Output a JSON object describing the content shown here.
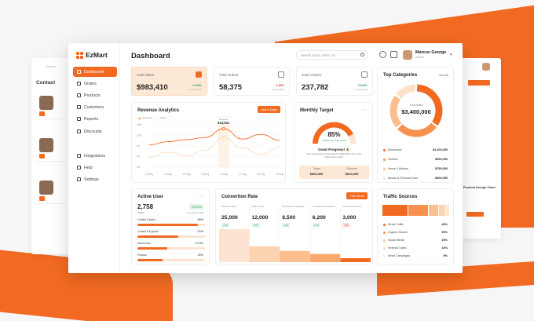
{
  "brand": {
    "name": "EzMart",
    "color": "#f26a21"
  },
  "header": {
    "title": "Dashboard",
    "search_placeholder": "Search stock, order, etc"
  },
  "user": {
    "name": "Marcus George",
    "role": "Admin"
  },
  "sidebar": {
    "items": [
      {
        "label": "Dashboard",
        "icon": "grid-icon",
        "active": true
      },
      {
        "label": "Orders",
        "icon": "cart-icon"
      },
      {
        "label": "Products",
        "icon": "box-icon"
      },
      {
        "label": "Customers",
        "icon": "users-icon"
      },
      {
        "label": "Reports",
        "icon": "chart-icon"
      },
      {
        "label": "Discounts",
        "icon": "percent-icon"
      },
      {
        "label": "Integrations",
        "icon": "plug-icon"
      },
      {
        "label": "Help",
        "icon": "help-icon"
      },
      {
        "label": "Settings",
        "icon": "gear-icon"
      }
    ]
  },
  "stats": [
    {
      "label": "Total Sales",
      "value": "$983,410",
      "change": "+3.34%",
      "sub": "vs last week",
      "trend": "up"
    },
    {
      "label": "Total Orders",
      "value": "58,375",
      "change": "-2.89%",
      "sub": "vs last week",
      "trend": "down"
    },
    {
      "label": "Total Visitors",
      "value": "237,782",
      "change": "+8.02%",
      "sub": "vs last week",
      "trend": "up"
    }
  ],
  "revenue": {
    "title": "Revenue Analytics",
    "button": "Last 8 Days",
    "legend": [
      "Revenue",
      "Order"
    ],
    "tooltip": {
      "label": "Revenue",
      "value": "$14,521"
    },
    "chart_data": {
      "type": "line",
      "x": [
        "12 Aug",
        "13 Aug",
        "14 Aug",
        "15 Aug",
        "16 Aug",
        "17 Aug",
        "18 Aug",
        "19 Aug"
      ],
      "yticks": [
        "16K",
        "12K",
        "8K",
        "4K",
        "0K"
      ],
      "ylim": [
        0,
        16000
      ],
      "series": [
        {
          "name": "Revenue",
          "values": [
            8400,
            9600,
            10400,
            11200,
            14521,
            10600,
            12400,
            10200
          ]
        },
        {
          "name": "Order",
          "values": [
            3800,
            5600,
            4400,
            6400,
            11200,
            7200,
            4800,
            7600
          ]
        }
      ]
    }
  },
  "monthly_target": {
    "title": "Monthly Target",
    "percent": 85,
    "percent_label": "85%",
    "change": "+8.02% from last month",
    "headline": "Great Progress! 🎉",
    "message": "Our achievement increased by $200,000, let's reach 100% next month.",
    "target_label": "Target",
    "target_value": "$600,000",
    "revenue_label": "Revenue",
    "revenue_value": "$510,000"
  },
  "top_categories": {
    "title": "Top Categories",
    "link": "See All",
    "total_label": "Total Sales",
    "total_value": "$3,400,000",
    "chart_data": {
      "type": "pie",
      "categories": [
        "Electronics",
        "Fashion",
        "Home & Kitchen",
        "Beauty & Personal Care"
      ],
      "values": [
        1200000,
        950000,
        750000,
        500000
      ]
    },
    "items": [
      {
        "name": "Electronics",
        "value": "$1,200,000",
        "color": "#f26a21"
      },
      {
        "name": "Fashion",
        "value": "$950,000",
        "color": "#f7924e"
      },
      {
        "name": "Home & Kitchen",
        "value": "$750,000",
        "color": "#fbbf8f"
      },
      {
        "name": "Beauty & Personal Care",
        "value": "$500,000",
        "color": "#fde0c8"
      }
    ]
  },
  "active_user": {
    "title": "Active User",
    "value": "2,758",
    "value_label": "Users",
    "change": "+8.02%",
    "change_sub": "from last month",
    "countries": [
      {
        "name": "United States",
        "pct": "36%",
        "value": 36
      },
      {
        "name": "United Kingdom",
        "pct": "24%",
        "value": 24
      },
      {
        "name": "Indonesia",
        "pct": "17.5%",
        "value": 17.5
      },
      {
        "name": "Russia",
        "pct": "15%",
        "value": 15
      }
    ]
  },
  "conversion": {
    "title": "Convertion Rate",
    "button": "This Week",
    "stages": [
      {
        "label": "Product Views",
        "value": "25,000",
        "change": "+9%",
        "trend": "up"
      },
      {
        "label": "Add to Cart",
        "value": "12,000",
        "change": "+6%",
        "trend": "up"
      },
      {
        "label": "Proceed to Checkout",
        "value": "8,500",
        "change": "+4%",
        "trend": "up"
      },
      {
        "label": "Completed Purchases",
        "value": "6,200",
        "change": "+7%",
        "trend": "up"
      },
      {
        "label": "Abandoned Carts",
        "value": "3,000",
        "change": "-5%",
        "trend": "down"
      }
    ],
    "chart_data": {
      "type": "bar",
      "categories": [
        "Product Views",
        "Add to Cart",
        "Proceed to Checkout",
        "Completed Purchases",
        "Abandoned Carts"
      ],
      "values": [
        25000,
        12000,
        8500,
        6200,
        3000
      ]
    }
  },
  "traffic": {
    "title": "Traffic Sources",
    "sources": [
      {
        "name": "Direct Traffic",
        "pct": "40%",
        "value": 40,
        "color": "#f26a21"
      },
      {
        "name": "Organic Search",
        "pct": "30%",
        "value": 30,
        "color": "#f7924e"
      },
      {
        "name": "Social Media",
        "pct": "15%",
        "value": 15,
        "color": "#fbbf8f"
      },
      {
        "name": "Referral Traffic",
        "pct": "10%",
        "value": 10,
        "color": "#fcd3b0"
      },
      {
        "name": "Email Campaigns",
        "pct": "5%",
        "value": 5,
        "color": "#fde8d6"
      }
    ]
  },
  "left_ghost": {
    "title": "Contact",
    "search": "Search"
  },
  "right_ghost": {
    "title": "Product Design Team"
  }
}
